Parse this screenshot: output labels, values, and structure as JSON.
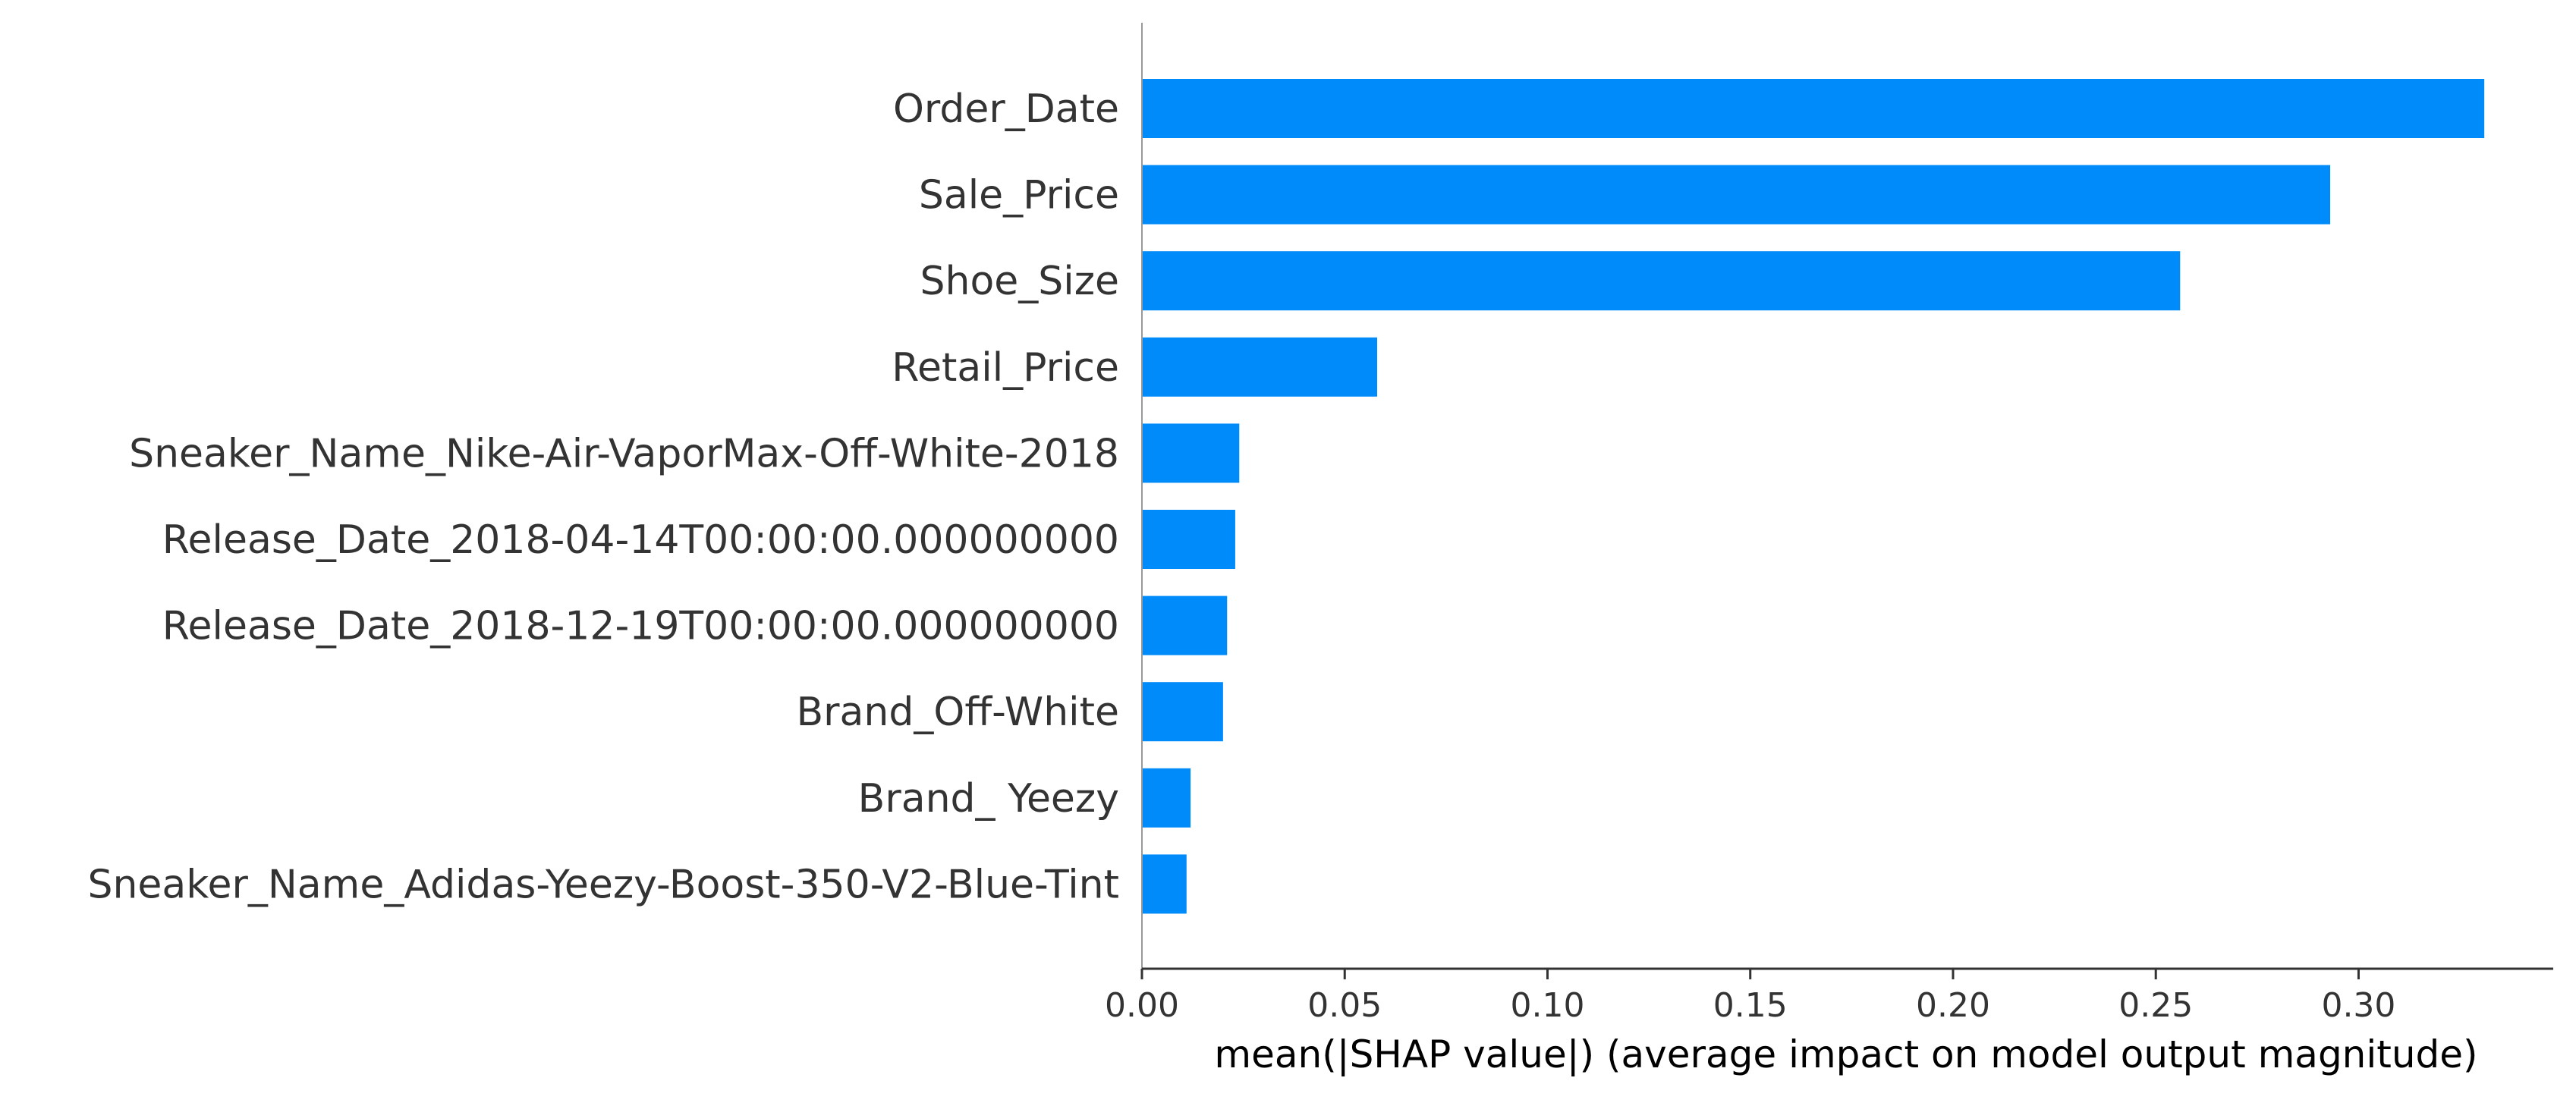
{
  "chart_data": {
    "type": "bar",
    "orientation": "horizontal",
    "categories": [
      "Order_Date",
      "Sale_Price",
      "Shoe_Size",
      "Retail_Price",
      "Sneaker_Name_Nike-Air-VaporMax-Off-White-2018",
      "Release_Date_2018-04-14T00:00:00.000000000",
      "Release_Date_2018-12-19T00:00:00.000000000",
      "Brand_Off-White",
      "Brand_ Yeezy",
      "Sneaker_Name_Adidas-Yeezy-Boost-350-V2-Blue-Tint"
    ],
    "values": [
      0.331,
      0.293,
      0.256,
      0.058,
      0.024,
      0.023,
      0.021,
      0.02,
      0.012,
      0.011
    ],
    "xlabel": "mean(|SHAP value|) (average impact on model output magnitude)",
    "ylabel": "",
    "title": "",
    "xlim": [
      0,
      0.348
    ],
    "xticks": [
      0.0,
      0.05,
      0.1,
      0.15,
      0.2,
      0.25,
      0.3
    ],
    "xtick_labels": [
      "0.00",
      "0.05",
      "0.10",
      "0.15",
      "0.20",
      "0.25",
      "0.30"
    ],
    "bar_color": "#008bfb",
    "axis_color": "#333333",
    "label_color": "#333333",
    "grid": false,
    "legend": "none"
  }
}
